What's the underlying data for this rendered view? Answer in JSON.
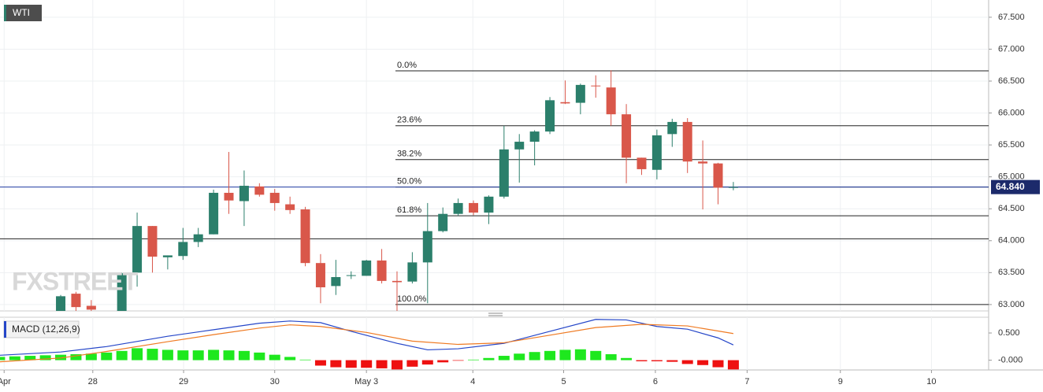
{
  "chart_data": [
    {
      "type": "candlestick",
      "title": "WTI",
      "watermark": "FXSTREET",
      "x": [
        0,
        1,
        2,
        4,
        5,
        6,
        7,
        8,
        9,
        10,
        11,
        12,
        13,
        14,
        15,
        16,
        17,
        18,
        19,
        20,
        21,
        22,
        23,
        24,
        25,
        26,
        27,
        28,
        29,
        30,
        31,
        32,
        33,
        34,
        35,
        36,
        37,
        38,
        39,
        40,
        41,
        42,
        43,
        44
      ],
      "open": [
        62.9,
        63.17,
        62.98,
        62.9,
        63.5,
        64.23,
        63.74,
        63.76,
        63.98,
        64.1,
        64.75,
        64.62,
        64.85,
        64.75,
        64.57,
        64.49,
        63.65,
        63.29,
        63.45,
        63.45,
        63.69,
        63.37,
        63.36,
        63.66,
        64.15,
        64.42,
        64.59,
        64.44,
        64.69,
        65.43,
        65.55,
        65.71,
        66.17,
        66.16,
        66.43,
        66.4,
        65.98,
        65.3,
        65.11,
        65.67,
        65.86,
        65.24,
        65.21,
        64.83
      ],
      "high": [
        63.15,
        63.2,
        63.07,
        63.5,
        64.44,
        64.23,
        63.77,
        64.2,
        64.2,
        64.8,
        65.39,
        65.1,
        64.9,
        64.81,
        64.69,
        64.53,
        63.79,
        63.7,
        63.52,
        63.7,
        63.87,
        63.52,
        63.82,
        64.59,
        64.52,
        64.66,
        64.63,
        64.71,
        65.8,
        65.67,
        65.73,
        66.25,
        66.51,
        66.46,
        66.59,
        66.67,
        66.14,
        65.3,
        65.74,
        65.91,
        65.92,
        65.57,
        65.22,
        64.92
      ],
      "low": [
        62.9,
        62.9,
        62.9,
        62.9,
        63.28,
        63.5,
        63.55,
        63.7,
        63.9,
        64.1,
        64.42,
        64.23,
        64.69,
        64.47,
        64.42,
        63.6,
        63.02,
        63.15,
        63.4,
        63.45,
        63.33,
        62.9,
        63.33,
        63.02,
        64.13,
        64.39,
        64.4,
        64.26,
        64.66,
        64.91,
        65.18,
        65.67,
        66.14,
        65.98,
        66.24,
        65.8,
        64.9,
        65.03,
        64.96,
        65.47,
        65.06,
        64.49,
        64.57,
        64.79
      ],
      "close": [
        63.13,
        62.96,
        62.92,
        63.49,
        64.23,
        63.75,
        63.77,
        63.98,
        64.1,
        64.75,
        64.63,
        64.86,
        64.72,
        64.59,
        64.48,
        63.65,
        63.27,
        63.43,
        63.46,
        63.69,
        63.37,
        63.35,
        63.66,
        64.15,
        64.42,
        64.59,
        64.44,
        64.69,
        65.43,
        65.55,
        65.71,
        66.2,
        66.15,
        66.44,
        66.42,
        65.98,
        65.3,
        65.12,
        65.65,
        65.86,
        65.24,
        65.21,
        64.83,
        64.84
      ],
      "up_color": "#2b7f6b",
      "down_color": "#d9574a",
      "xlim": [
        -3.97,
        60.7
      ],
      "ylim": [
        62.9,
        67.77
      ],
      "yticks": [
        {
          "value": 63,
          "label": "63.000"
        },
        {
          "value": 63.5,
          "label": "63.500"
        },
        {
          "value": 64,
          "label": "64.000"
        },
        {
          "value": 64.5,
          "label": "64.500"
        },
        {
          "value": 65,
          "label": "65.000"
        },
        {
          "value": 65.5,
          "label": "65.500"
        },
        {
          "value": 66,
          "label": "66.000"
        },
        {
          "value": 66.5,
          "label": "66.500"
        },
        {
          "value": 67,
          "label": "67.000"
        },
        {
          "value": 67.5,
          "label": "67.500"
        }
      ],
      "levels": [
        {
          "label": "0.0%",
          "value": 66.66
        },
        {
          "label": "23.6%",
          "value": 65.8
        },
        {
          "label": "38.2%",
          "value": 65.27
        },
        {
          "label": "50.0%",
          "value": 64.84
        },
        {
          "label": "61.8%",
          "value": 64.39
        },
        {
          "label": "100.0%",
          "value": 63.0
        }
      ],
      "support": 64.03,
      "last_price": {
        "value": 64.84,
        "label": "64.840"
      },
      "grid": true
    },
    {
      "type": "macd",
      "title": "MACD (12,26,9)",
      "histogram": {
        "x": [
          -4,
          -3,
          -2,
          -1,
          0,
          1,
          2,
          3,
          4,
          5,
          6,
          7,
          8,
          9,
          10,
          11,
          12,
          13,
          14,
          15,
          16,
          17,
          18,
          19,
          20,
          21,
          22,
          23,
          24,
          25,
          26,
          27,
          28,
          29,
          30,
          31,
          32,
          33,
          34,
          35,
          36,
          37,
          38,
          39,
          40,
          41,
          42,
          43,
          44
        ],
        "values": [
          0.06,
          0.07,
          0.08,
          0.09,
          0.1,
          0.11,
          0.12,
          0.14,
          0.17,
          0.22,
          0.21,
          0.19,
          0.18,
          0.18,
          0.19,
          0.18,
          0.17,
          0.14,
          0.1,
          0.06,
          0.01,
          -0.1,
          -0.13,
          -0.14,
          -0.14,
          -0.15,
          -0.17,
          -0.12,
          -0.08,
          -0.04,
          -0.01,
          0.01,
          0.04,
          0.08,
          0.12,
          0.15,
          0.17,
          0.19,
          0.2,
          0.17,
          0.11,
          0.04,
          -0.02,
          -0.02,
          -0.03,
          -0.07,
          -0.09,
          -0.13,
          -0.17
        ],
        "up_color": "#1ee81e",
        "down_color": "#ee1111"
      },
      "series": [
        {
          "color": "#2546c8",
          "x": [
            -4,
            0,
            3,
            7,
            10,
            13,
            15,
            17,
            19,
            22,
            24,
            26,
            29,
            32,
            35,
            37,
            39,
            41,
            43,
            44
          ],
          "values": [
            0.09,
            0.15,
            0.25,
            0.44,
            0.56,
            0.68,
            0.72,
            0.69,
            0.53,
            0.31,
            0.19,
            0.21,
            0.31,
            0.53,
            0.75,
            0.74,
            0.62,
            0.57,
            0.41,
            0.28
          ]
        },
        {
          "color": "#ef7a22",
          "x": [
            -4,
            0,
            3,
            7,
            10,
            13,
            15,
            17,
            20,
            23,
            26,
            29,
            32,
            35,
            38,
            41,
            44
          ],
          "values": [
            -0.03,
            0.04,
            0.16,
            0.34,
            0.47,
            0.59,
            0.65,
            0.62,
            0.51,
            0.35,
            0.29,
            0.32,
            0.46,
            0.6,
            0.66,
            0.63,
            0.49
          ]
        }
      ],
      "xlim": [
        -3.97,
        60.7
      ],
      "ylim": [
        -0.18,
        0.79
      ],
      "yticks": [
        {
          "value": 0.5,
          "label": "0.500"
        },
        {
          "value": 0,
          "label": "-0.000"
        }
      ],
      "xticks": [
        {
          "value": -3.7,
          "label": "Apr"
        },
        {
          "value": 2.1,
          "label": "28"
        },
        {
          "value": 8.04,
          "label": "29"
        },
        {
          "value": 14.0,
          "label": "30"
        },
        {
          "value": 20.0,
          "label": "May 3"
        },
        {
          "value": 26.96,
          "label": "4"
        },
        {
          "value": 32.9,
          "label": "5"
        },
        {
          "value": 38.9,
          "label": "6"
        },
        {
          "value": 44.9,
          "label": "7"
        },
        {
          "value": 51.0,
          "label": "9"
        },
        {
          "value": 56.96,
          "label": "10"
        }
      ]
    }
  ]
}
